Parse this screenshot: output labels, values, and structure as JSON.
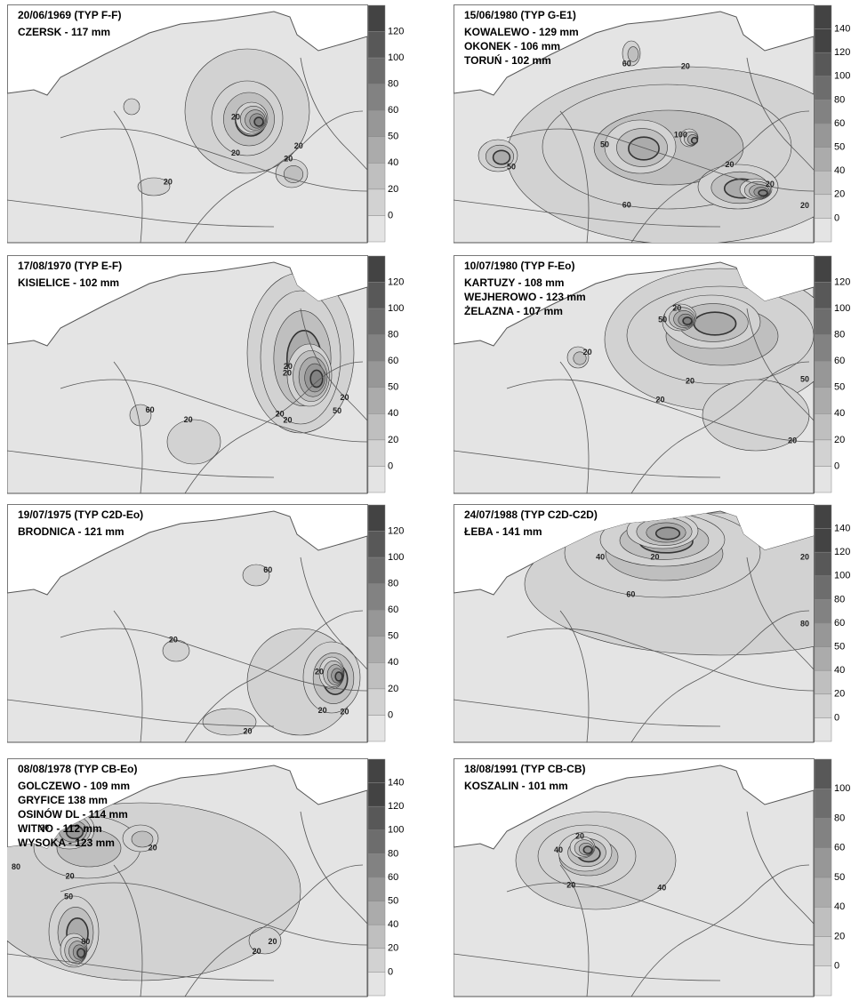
{
  "panels": [
    {
      "title": "20/06/1969 (TYP F-F)",
      "stations": [
        "CZERSK - 117 mm"
      ],
      "legend": [
        120,
        100,
        80,
        60,
        50,
        40,
        20,
        0
      ],
      "contour_labels": [
        20,
        20,
        20,
        20,
        20
      ]
    },
    {
      "title": "15/06/1980 (TYP G-E1)",
      "stations": [
        "KOWALEWO - 129 mm",
        "OKONEK - 106 mm",
        "TORUŃ - 102 mm"
      ],
      "legend": [
        140,
        120,
        100,
        80,
        60,
        50,
        40,
        20,
        0
      ],
      "contour_labels": [
        20,
        60,
        50,
        20,
        20,
        50,
        60,
        100,
        20
      ]
    },
    {
      "title": "17/08/1970 (TYP E-F)",
      "stations": [
        "KISIELICE - 102 mm"
      ],
      "legend": [
        120,
        100,
        80,
        60,
        50,
        40,
        20,
        0
      ],
      "contour_labels": [
        20,
        20,
        20,
        20,
        60,
        50,
        20,
        20
      ]
    },
    {
      "title": "10/07/1980 (TYP F-Eo)",
      "stations": [
        "KARTUZY - 108 mm",
        "WEJHEROWO - 123 mm",
        "ŻELAZNA - 107 mm"
      ],
      "legend": [
        120,
        100,
        80,
        60,
        50,
        40,
        20,
        0
      ],
      "contour_labels": [
        50,
        20,
        50,
        20,
        20,
        20,
        20
      ]
    },
    {
      "title": "19/07/1975 (TYP C2D-Eo)",
      "stations": [
        "BRODNICA - 121 mm"
      ],
      "legend": [
        120,
        100,
        80,
        60,
        50,
        40,
        20,
        0
      ],
      "contour_labels": [
        20,
        20,
        20,
        20,
        60,
        20
      ]
    },
    {
      "title": "24/07/1988 (TYP C2D-C2D)",
      "stations": [
        "ŁEBA - 141 mm"
      ],
      "legend": [
        140,
        120,
        100,
        80,
        60,
        50,
        40,
        20,
        0
      ],
      "contour_labels": [
        80,
        60,
        40,
        20,
        20
      ]
    },
    {
      "title": "08/08/1978 (TYP CB-Eo)",
      "stations": [
        "GOLCZEWO - 109 mm",
        "GRYFICE  138 mm",
        "OSINÓW DL - 114 mm",
        "WITNO - 112 mm",
        "WYSOKA - 123 mm"
      ],
      "legend": [
        140,
        120,
        100,
        80,
        60,
        50,
        40,
        20,
        0
      ],
      "contour_labels": [
        20,
        20,
        20,
        50,
        80,
        20,
        20,
        80
      ]
    },
    {
      "title": "18/08/1991 (TYP CB-CB)",
      "stations": [
        "KOSZALIN  - 101 mm"
      ],
      "legend": [
        100,
        80,
        60,
        50,
        40,
        20,
        0
      ],
      "contour_labels": [
        40,
        20,
        40,
        20
      ]
    }
  ]
}
